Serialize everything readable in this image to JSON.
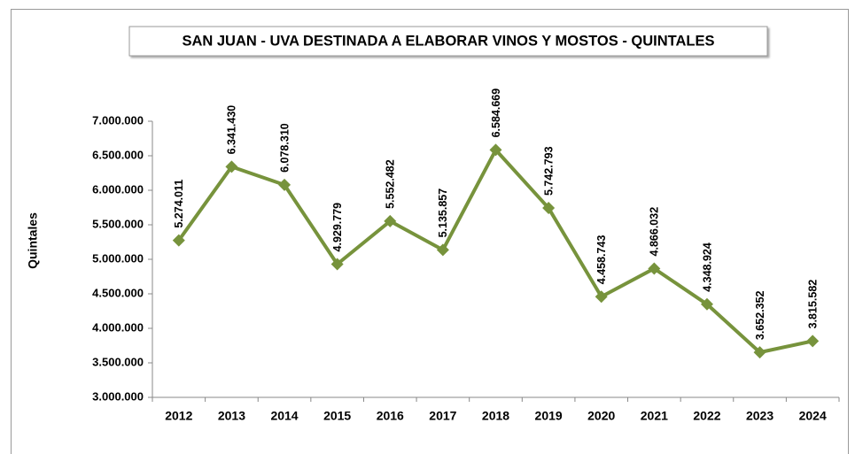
{
  "chart_data": {
    "type": "line",
    "title": "SAN JUAN - UVA DESTINADA A ELABORAR VINOS Y MOSTOS - QUINTALES",
    "y_label": "Quintales",
    "categories": [
      "2012",
      "2013",
      "2014",
      "2015",
      "2016",
      "2017",
      "2018",
      "2019",
      "2020",
      "2021",
      "2022",
      "2023",
      "2024"
    ],
    "series": [
      {
        "name": "Quintales",
        "color": "#77933c",
        "values": [
          5274011,
          6341430,
          6078310,
          4929779,
          5552482,
          5135857,
          6584669,
          5742793,
          4458743,
          4866032,
          4348924,
          3652352,
          3815582
        ],
        "value_labels": [
          "5.274.011",
          "6.341.430",
          "6.078.310",
          "4.929.779",
          "5.552.482",
          "5.135.857",
          "6.584.669",
          "5.742.793",
          "4.458.743",
          "4.866.032",
          "4.348.924",
          "3.652.352",
          "3.815.582"
        ]
      }
    ],
    "ylim": [
      3000000,
      7000000
    ],
    "yticks": [
      {
        "value": 3000000,
        "label": "3.000.000"
      },
      {
        "value": 3500000,
        "label": "3.500.000"
      },
      {
        "value": 4000000,
        "label": "4.000.000"
      },
      {
        "value": 4500000,
        "label": "4.500.000"
      },
      {
        "value": 5000000,
        "label": "5.000.000"
      },
      {
        "value": 5500000,
        "label": "5.500.000"
      },
      {
        "value": 6000000,
        "label": "6.000.000"
      },
      {
        "value": 6500000,
        "label": "6.500.000"
      },
      {
        "value": 7000000,
        "label": "7.000.000"
      }
    ],
    "grid": false
  }
}
